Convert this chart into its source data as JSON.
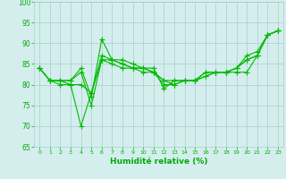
{
  "series": [
    [
      84,
      81,
      81,
      81,
      84,
      77,
      91,
      86,
      86,
      85,
      84,
      84,
      79,
      81,
      81,
      81,
      83,
      83,
      83,
      83,
      83,
      87,
      92,
      93
    ],
    [
      84,
      81,
      81,
      81,
      83,
      75,
      86,
      86,
      85,
      84,
      84,
      83,
      81,
      81,
      81,
      81,
      83,
      83,
      83,
      84,
      87,
      88,
      92,
      93
    ],
    [
      84,
      81,
      81,
      80,
      80,
      78,
      87,
      86,
      85,
      84,
      84,
      83,
      81,
      80,
      81,
      81,
      82,
      83,
      83,
      84,
      86,
      87,
      92,
      93
    ],
    [
      84,
      81,
      80,
      80,
      70,
      78,
      86,
      85,
      84,
      84,
      83,
      83,
      80,
      80,
      81,
      81,
      82,
      83,
      83,
      84,
      86,
      87,
      92,
      93
    ]
  ],
  "x": [
    0,
    1,
    2,
    3,
    4,
    5,
    6,
    7,
    8,
    9,
    10,
    11,
    12,
    13,
    14,
    15,
    16,
    17,
    18,
    19,
    20,
    21,
    22,
    23
  ],
  "xlim": [
    -0.5,
    23.5
  ],
  "ylim": [
    65,
    100
  ],
  "yticks": [
    65,
    70,
    75,
    80,
    85,
    90,
    95,
    100
  ],
  "xticks": [
    0,
    1,
    2,
    3,
    4,
    5,
    6,
    7,
    8,
    9,
    10,
    11,
    12,
    13,
    14,
    15,
    16,
    17,
    18,
    19,
    20,
    21,
    22,
    23
  ],
  "xlabel": "Humidité relative (%)",
  "line_color": "#00bb00",
  "marker": "+",
  "bg_color": "#d4eeee",
  "grid_color": "#aacccc",
  "tick_color": "#00aa00",
  "label_color": "#00aa00",
  "marker_size": 4,
  "linewidth": 0.8
}
